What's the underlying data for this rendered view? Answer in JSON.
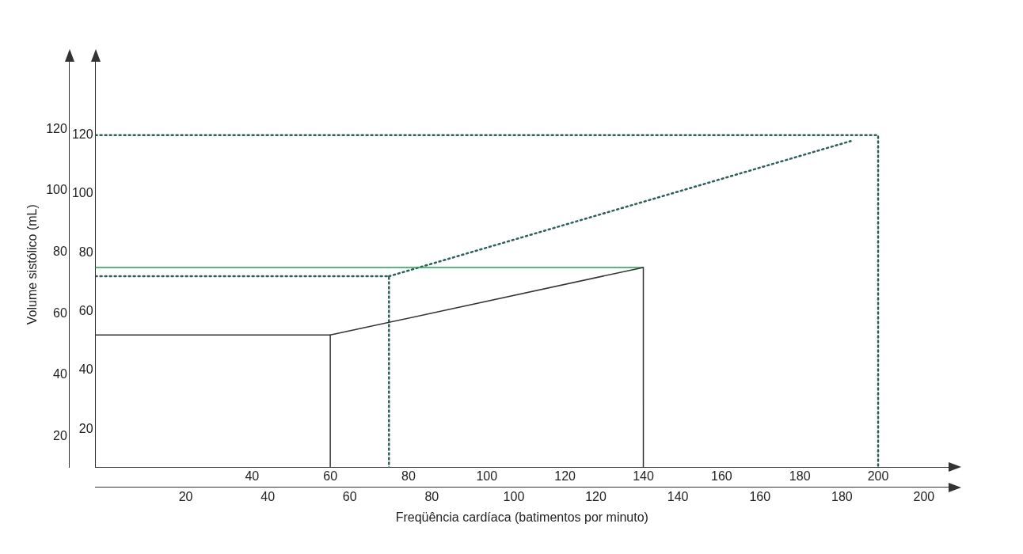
{
  "chart_data": {
    "type": "line",
    "x2label": "Freqüência cardíaca (batimentos por minuto)",
    "y2label": "Volume sistólico (mL)",
    "xlim": [
      0,
      218
    ],
    "ylim": [
      7,
      145
    ],
    "xticks": [
      40,
      60,
      80,
      100,
      120,
      140,
      160,
      180,
      200
    ],
    "yticks": [
      20,
      40,
      60,
      80,
      100,
      120
    ],
    "x2lim": [
      -2,
      206
    ],
    "y2lim": [
      10,
      142
    ],
    "x2ticks": [
      20,
      40,
      60,
      80,
      100,
      120,
      140,
      160,
      180,
      200
    ],
    "y2ticks": [
      20,
      40,
      60,
      80,
      100,
      120
    ],
    "grid": false,
    "legend": false,
    "marker": "none",
    "series": [
      {
        "color": "#333333",
        "line_style": "solid",
        "x": [
          0,
          60,
          60
        ],
        "values": [
          52,
          52,
          7
        ]
      },
      {
        "color": "#333333",
        "line_style": "solid",
        "x": [
          60,
          140,
          140
        ],
        "values": [
          52,
          75,
          7
        ]
      },
      {
        "color": "#22a050",
        "line_style": "solid",
        "x": [
          0,
          140
        ],
        "values": [
          75,
          75
        ]
      },
      {
        "color": "#2f5f5a",
        "line_style": "dotted",
        "x": [
          0,
          75,
          75
        ],
        "values": [
          72,
          72,
          7
        ]
      },
      {
        "color": "#2f5f5a",
        "line_style": "dotted",
        "x": [
          75,
          193
        ],
        "values": [
          72,
          118
        ]
      },
      {
        "color": "#2f5f5a",
        "line_style": "dotted",
        "x": [
          0,
          200,
          200
        ],
        "values": [
          120,
          120,
          7
        ]
      }
    ]
  }
}
